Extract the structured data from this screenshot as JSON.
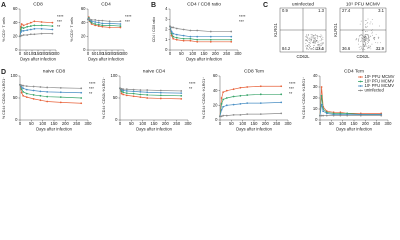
{
  "chart_data": [
    {
      "type": "line",
      "panel": "A",
      "title": "CD8",
      "ylabel": "% CD3⁺ T cells",
      "xlabel": "Days after infection",
      "x": [
        0,
        7,
        14,
        30,
        60,
        90,
        120,
        180,
        270
      ],
      "xlim": [
        0,
        300
      ],
      "xticks": [
        0,
        50,
        100,
        150,
        200,
        250,
        300
      ],
      "ylim": [
        0,
        60
      ],
      "yticks": [
        0,
        20,
        40,
        60
      ],
      "series": [
        {
          "color": "#e8623a",
          "values": [
            20,
            34,
            38,
            36,
            38,
            40,
            42,
            41,
            40
          ]
        },
        {
          "color": "#3aa56b",
          "values": [
            20,
            30,
            33,
            32,
            34,
            35,
            36,
            36,
            35
          ]
        },
        {
          "color": "#4a8fc4",
          "values": [
            20,
            26,
            28,
            28,
            29,
            30,
            31,
            31,
            30
          ]
        },
        {
          "color": "#8c8c8c",
          "values": [
            20,
            21,
            21,
            22,
            22,
            23,
            23,
            24,
            24
          ]
        }
      ],
      "annotations": [
        "****",
        "***",
        "**"
      ]
    },
    {
      "type": "line",
      "title": "CD4",
      "ylabel": "% CD3⁺ T cells",
      "xlabel": "Days after infection",
      "x": [
        0,
        7,
        14,
        30,
        60,
        90,
        120,
        180,
        270
      ],
      "xlim": [
        0,
        300
      ],
      "xticks": [
        0,
        50,
        100,
        150,
        200,
        250,
        300
      ],
      "ylim": [
        0,
        60
      ],
      "yticks": [
        0,
        20,
        40,
        60
      ],
      "series": [
        {
          "color": "#e8623a",
          "values": [
            45,
            48,
            42,
            38,
            36,
            35,
            34,
            33,
            33
          ]
        },
        {
          "color": "#3aa56b",
          "values": [
            45,
            47,
            43,
            40,
            38,
            37,
            36,
            36,
            35
          ]
        },
        {
          "color": "#4a8fc4",
          "values": [
            45,
            46,
            44,
            42,
            41,
            40,
            39,
            39,
            38
          ]
        },
        {
          "color": "#8c8c8c",
          "values": [
            45,
            45,
            45,
            44,
            44,
            43,
            43,
            42,
            42
          ]
        }
      ],
      "annotations": [
        "****",
        "***"
      ]
    },
    {
      "type": "line",
      "panel": "B",
      "title": "CD4 / CD8 ratio",
      "ylabel": "CD4 / CD8 ratio",
      "xlabel": "Days after infection",
      "x": [
        0,
        7,
        14,
        30,
        60,
        90,
        120,
        180,
        270
      ],
      "xlim": [
        0,
        300
      ],
      "xticks": [
        0,
        50,
        100,
        150,
        200,
        250,
        300
      ],
      "ylim": [
        0,
        4
      ],
      "yticks": [
        0,
        1,
        2,
        3,
        4
      ],
      "series": [
        {
          "color": "#e8623a",
          "values": [
            2.3,
            1.4,
            1.1,
            1.0,
            0.9,
            0.9,
            0.8,
            0.8,
            0.8
          ]
        },
        {
          "color": "#3aa56b",
          "values": [
            2.3,
            1.6,
            1.3,
            1.2,
            1.1,
            1.1,
            1.0,
            1.0,
            1.0
          ]
        },
        {
          "color": "#4a8fc4",
          "values": [
            2.3,
            1.8,
            1.6,
            1.5,
            1.4,
            1.3,
            1.3,
            1.3,
            1.3
          ]
        },
        {
          "color": "#8c8c8c",
          "values": [
            2.3,
            2.2,
            2.2,
            2.1,
            2.0,
            1.9,
            1.9,
            1.8,
            1.8
          ]
        }
      ],
      "annotations": [
        "****",
        "***"
      ]
    },
    {
      "type": "flow",
      "panel": "C",
      "xlabel": "CD62L",
      "ylabel": "KLRG1",
      "plots": [
        {
          "title": "uninfected",
          "quadrants": [
            0.9,
            1.3,
            84.2,
            13.6
          ]
        },
        {
          "title": "10⁵ PFU MCMV",
          "quadrants": [
            27.4,
            3.1,
            36.6,
            32.9
          ]
        }
      ]
    },
    {
      "type": "line",
      "panel": "D",
      "title": "naive CD8",
      "ylabel": "% CD44⁻CD62L⁺KLRG1⁻",
      "xlabel": "Days after infection",
      "x": [
        0,
        7,
        14,
        30,
        60,
        90,
        120,
        180,
        270
      ],
      "xlim": [
        0,
        300
      ],
      "xticks": [
        0,
        50,
        100,
        150,
        200,
        250,
        300
      ],
      "ylim": [
        0,
        100
      ],
      "yticks": [
        0,
        50,
        100
      ],
      "series": [
        {
          "color": "#e8623a",
          "values": [
            80,
            62,
            55,
            52,
            48,
            45,
            42,
            40,
            38
          ]
        },
        {
          "color": "#3aa56b",
          "values": [
            80,
            70,
            64,
            60,
            57,
            55,
            53,
            52,
            50
          ]
        },
        {
          "color": "#4a8fc4",
          "values": [
            80,
            75,
            72,
            69,
            67,
            65,
            64,
            63,
            62
          ]
        },
        {
          "color": "#8c8c8c",
          "values": [
            80,
            79,
            78,
            77,
            76,
            75,
            74,
            73,
            72
          ]
        }
      ],
      "annotations": [
        "****",
        "***",
        "**"
      ]
    },
    {
      "type": "line",
      "title": "naive CD4",
      "ylabel": "% CD44⁻CD62L⁺KLRG1⁻",
      "xlabel": "Days after infection",
      "x": [
        0,
        7,
        14,
        30,
        60,
        90,
        120,
        180,
        270
      ],
      "xlim": [
        0,
        300
      ],
      "xticks": [
        0,
        50,
        100,
        150,
        200,
        250,
        300
      ],
      "ylim": [
        0,
        100
      ],
      "yticks": [
        0,
        50,
        100
      ],
      "series": [
        {
          "color": "#e8623a",
          "values": [
            72,
            60,
            58,
            56,
            54,
            52,
            50,
            49,
            48
          ]
        },
        {
          "color": "#3aa56b",
          "values": [
            72,
            65,
            63,
            61,
            60,
            58,
            57,
            56,
            55
          ]
        },
        {
          "color": "#4a8fc4",
          "values": [
            72,
            69,
            67,
            66,
            65,
            64,
            63,
            62,
            61
          ]
        },
        {
          "color": "#8c8c8c",
          "values": [
            72,
            71,
            70,
            70,
            69,
            68,
            68,
            67,
            66
          ]
        }
      ],
      "annotations": [
        "****",
        "**"
      ]
    },
    {
      "type": "line",
      "title": "CD8 Tem",
      "ylabel": "% CD44⁺CD62L⁻KLRG1⁺",
      "xlabel": "Days after infection",
      "x": [
        0,
        7,
        14,
        30,
        60,
        90,
        120,
        180,
        270
      ],
      "xlim": [
        0,
        300
      ],
      "xticks": [
        0,
        50,
        100,
        150,
        200,
        250,
        300
      ],
      "ylim": [
        0,
        60
      ],
      "yticks": [
        0,
        20,
        40,
        60
      ],
      "series": [
        {
          "color": "#e8623a",
          "values": [
            5,
            30,
            38,
            40,
            42,
            44,
            45,
            46,
            46
          ]
        },
        {
          "color": "#3aa56b",
          "values": [
            5,
            22,
            28,
            30,
            32,
            33,
            34,
            35,
            35
          ]
        },
        {
          "color": "#4a8fc4",
          "values": [
            5,
            14,
            18,
            20,
            21,
            22,
            23,
            23,
            24
          ]
        },
        {
          "color": "#8c8c8c",
          "values": [
            5,
            5,
            6,
            6,
            7,
            7,
            8,
            8,
            9
          ]
        }
      ],
      "annotations": [
        "****",
        "***",
        "**"
      ]
    },
    {
      "type": "line",
      "title": "CD4 Tem",
      "ylabel": "% CD44⁺CD62L⁻KLRG1⁺",
      "xlabel": "Days after infection",
      "x": [
        0,
        7,
        14,
        30,
        60,
        90,
        120,
        180,
        270
      ],
      "xlim": [
        0,
        300
      ],
      "xticks": [
        0,
        50,
        100,
        150,
        200,
        250,
        300
      ],
      "ylim": [
        0,
        40
      ],
      "yticks": [
        0,
        10,
        20,
        30,
        40
      ],
      "series": [
        {
          "name": "10⁵ PFU MCMV",
          "color": "#e8623a",
          "values": [
            4,
            30,
            12,
            8,
            7,
            7,
            6,
            6,
            6
          ]
        },
        {
          "name": "10³ PFU MCMV",
          "color": "#3aa56b",
          "values": [
            4,
            22,
            10,
            7,
            6,
            6,
            6,
            5,
            5
          ]
        },
        {
          "name": "10¹ PFU MCMV",
          "color": "#4a8fc4",
          "values": [
            4,
            14,
            8,
            6,
            5,
            5,
            5,
            5,
            5
          ]
        },
        {
          "name": "uninfected",
          "color": "#8c8c8c",
          "values": [
            4,
            4,
            4,
            4,
            4,
            4,
            4,
            4,
            4
          ]
        }
      ],
      "legend": "upper-right"
    }
  ]
}
